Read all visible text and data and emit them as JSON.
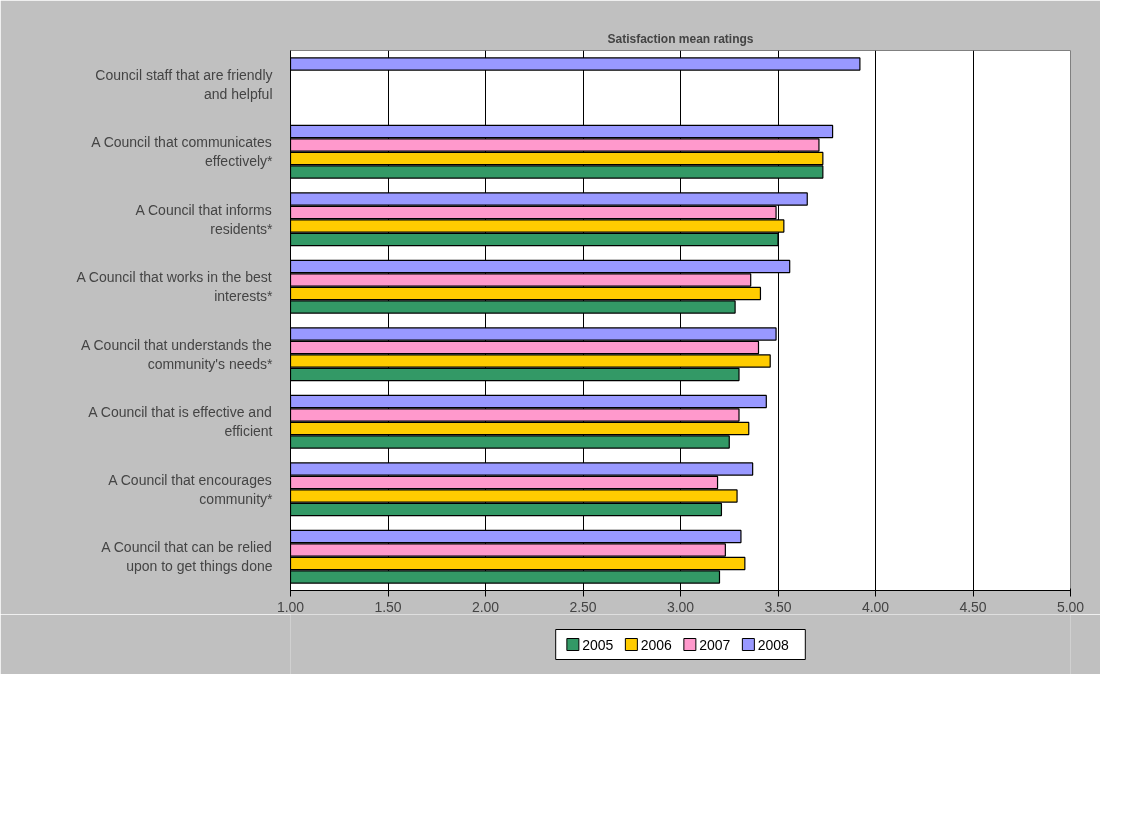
{
  "chart_data": {
    "type": "bar",
    "orientation": "horizontal",
    "title": "Satisfaction mean ratings",
    "categories": [
      "Council staff that are friendly and helpful",
      "A Council that communicates effectively*",
      "A Council that informs residents*",
      "A Council that works in the best interests*",
      "A Council that understands the community's needs*",
      "A Council that is effective and efficient",
      "A Council that encourages community*",
      "A Council that can be relied upon to get things done"
    ],
    "series": [
      {
        "name": "2005",
        "color": "#339966",
        "values": [
          null,
          3.73,
          3.5,
          3.28,
          3.3,
          3.25,
          3.21,
          3.2
        ]
      },
      {
        "name": "2006",
        "color": "#ffcc00",
        "values": [
          null,
          3.73,
          3.53,
          3.41,
          3.46,
          3.35,
          3.29,
          3.33
        ]
      },
      {
        "name": "2007",
        "color": "#ff99cc",
        "values": [
          null,
          3.71,
          3.49,
          3.36,
          3.4,
          3.3,
          3.19,
          3.23
        ]
      },
      {
        "name": "2008",
        "color": "#9999ff",
        "values": [
          3.92,
          3.78,
          3.65,
          3.56,
          3.49,
          3.44,
          3.37,
          3.31
        ]
      }
    ],
    "xlim": [
      1,
      5
    ],
    "xticks": [
      {
        "value": 1,
        "label": "1.00"
      },
      {
        "value": 1.5,
        "label": "1.50"
      },
      {
        "value": 2,
        "label": "2.00"
      },
      {
        "value": 2.5,
        "label": "2.50"
      },
      {
        "value": 3,
        "label": "3.00"
      },
      {
        "value": 3.5,
        "label": "3.50"
      },
      {
        "value": 4,
        "label": "4.00"
      },
      {
        "value": 4.5,
        "label": "4.50"
      },
      {
        "value": 5,
        "label": "5.00"
      }
    ],
    "grid": "x",
    "legend": "bottom"
  }
}
